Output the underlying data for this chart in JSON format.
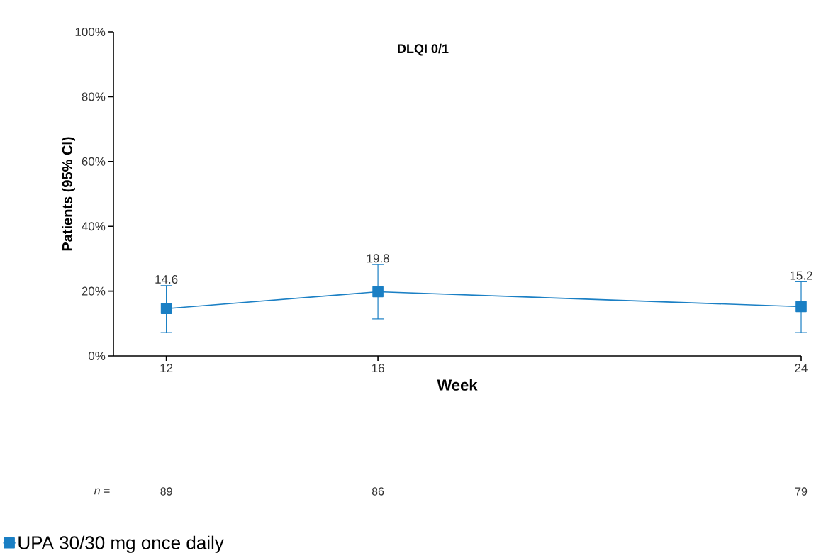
{
  "chart_data": {
    "type": "line",
    "title": "DLQI 0/1",
    "xlabel": "Week",
    "ylabel": "Patients (95% CI)",
    "x": [
      12,
      16,
      24
    ],
    "series": [
      {
        "name": "UPA 30/30 mg once daily",
        "color": "#1a7fc4",
        "values": [
          14.6,
          19.8,
          15.2
        ],
        "errors": [
          [
            7.2,
            21.7
          ],
          [
            11.4,
            28.2
          ],
          [
            7.2,
            22.9
          ]
        ]
      }
    ],
    "xlim": [
      11,
      24
    ],
    "xticks": [
      12,
      16,
      24
    ],
    "ylim": [
      0,
      100
    ],
    "yticks": [
      {
        "value": 0,
        "label": "0%"
      },
      {
        "value": 20,
        "label": "20%"
      },
      {
        "value": 40,
        "label": "40%"
      },
      {
        "value": 60,
        "label": "60%"
      },
      {
        "value": 80,
        "label": "80%"
      },
      {
        "value": 100,
        "label": "100%"
      }
    ],
    "data_labels": true,
    "marker": "square",
    "line_style": "solid",
    "grid": false,
    "legend": "bottom left",
    "annotations": [
      "*n* =",
      "89",
      "86",
      "79"
    ]
  }
}
